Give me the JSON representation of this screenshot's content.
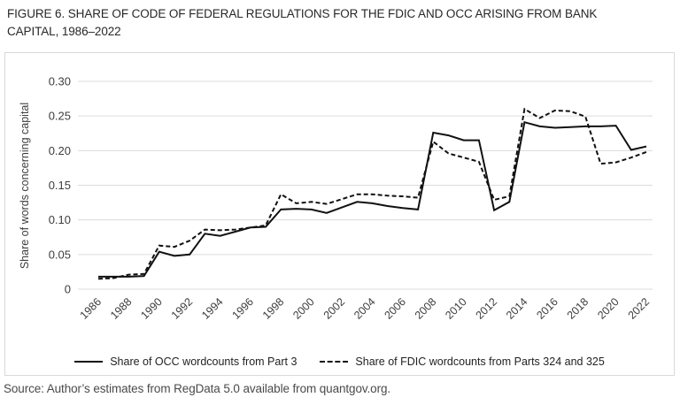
{
  "figure": {
    "title": "FIGURE 6. SHARE OF CODE OF FEDERAL REGULATIONS FOR THE FDIC AND OCC ARISING FROM BANK CAPITAL, 1986–2022"
  },
  "source": {
    "text": "Source: Author’s estimates from RegData 5.0 available from quantgov.org."
  },
  "colors": {
    "line": "#111111",
    "grid": "#dcdcdc",
    "box_border": "#d9d9d9",
    "tick_text": "#3d3d3d",
    "title_text": "#272727"
  },
  "chart_data": {
    "type": "line",
    "title": "FIGURE 6. SHARE OF CODE OF FEDERAL REGULATIONS FOR THE FDIC AND OCC ARISING FROM BANK CAPITAL, 1986–2022",
    "xlabel": "",
    "ylabel": "Share of words concerning capital",
    "ylim": [
      0,
      0.3
    ],
    "yticks": [
      0,
      0.05,
      0.1,
      0.15,
      0.2,
      0.25,
      0.3
    ],
    "ytick_labels": [
      "0",
      "0.05",
      "0.10",
      "0.15",
      "0.20",
      "0.25",
      "0.30"
    ],
    "x": [
      1986,
      1987,
      1988,
      1989,
      1990,
      1991,
      1992,
      1993,
      1994,
      1995,
      1996,
      1997,
      1998,
      1999,
      2000,
      2001,
      2002,
      2003,
      2004,
      2005,
      2006,
      2007,
      2008,
      2009,
      2010,
      2011,
      2012,
      2013,
      2014,
      2015,
      2016,
      2017,
      2018,
      2019,
      2020,
      2021,
      2022
    ],
    "xtick_labels": [
      "1986",
      "1988",
      "1990",
      "1992",
      "1994",
      "1996",
      "1998",
      "2000",
      "2002",
      "2004",
      "2006",
      "2008",
      "2010",
      "2012",
      "2014",
      "2016",
      "2018",
      "2020",
      "2022"
    ],
    "grid": "horizontal",
    "legend_position": "bottom",
    "series": [
      {
        "name": "Share of OCC wordcounts from Part 3",
        "style": "solid",
        "values": [
          0.018,
          0.018,
          0.018,
          0.019,
          0.054,
          0.048,
          0.05,
          0.08,
          0.077,
          0.083,
          0.089,
          0.09,
          0.115,
          0.116,
          0.115,
          0.11,
          0.118,
          0.126,
          0.124,
          0.12,
          0.117,
          0.115,
          0.226,
          0.222,
          0.215,
          0.215,
          0.114,
          0.126,
          0.241,
          0.235,
          0.233,
          0.234,
          0.235,
          0.235,
          0.236,
          0.201,
          0.206
        ]
      },
      {
        "name": "Share of FDIC wordcounts from Parts 324 and 325",
        "style": "dashed",
        "values": [
          0.015,
          0.016,
          0.021,
          0.022,
          0.063,
          0.061,
          0.07,
          0.086,
          0.085,
          0.086,
          0.089,
          0.092,
          0.137,
          0.124,
          0.126,
          0.123,
          0.13,
          0.137,
          0.137,
          0.135,
          0.134,
          0.132,
          0.213,
          0.196,
          0.19,
          0.184,
          0.129,
          0.134,
          0.26,
          0.247,
          0.258,
          0.257,
          0.249,
          0.181,
          0.183,
          0.19,
          0.198
        ]
      }
    ]
  }
}
